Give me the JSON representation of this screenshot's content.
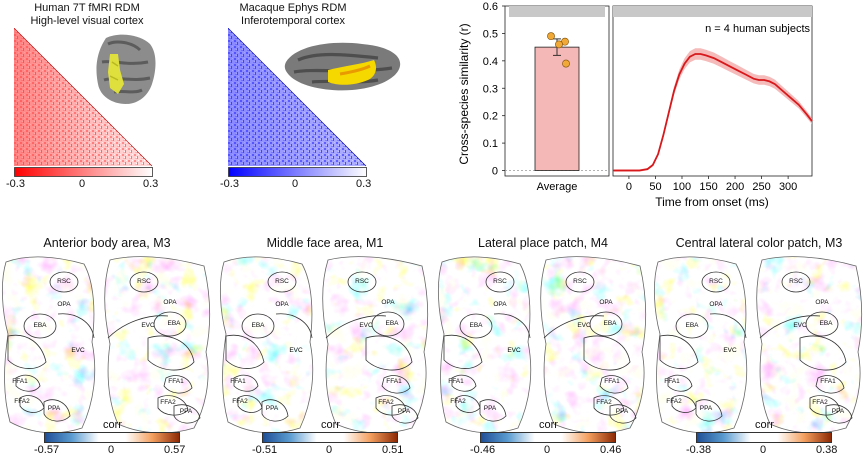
{
  "rdm_human": {
    "title_line1": "Human 7T fMRI RDM",
    "title_line2": "High-level visual cortex",
    "cbar_min": "-0.3",
    "cbar_mid": "0",
    "cbar_max": "0.3",
    "color": "#e60000"
  },
  "rdm_macaque": {
    "title_line1": "Macaque Ephys RDM",
    "title_line2": "Inferotemporal cortex",
    "cbar_min": "-0.3",
    "cbar_mid": "0",
    "cbar_max": "0.3",
    "color": "#1a1aff"
  },
  "chart_data": [
    {
      "type": "bar",
      "categories": [
        "Average"
      ],
      "values": [
        0.45
      ],
      "error": [
        0.03
      ],
      "points": [
        0.49,
        0.47,
        0.46,
        0.39
      ],
      "ylabel": "Cross-species similarity (r)",
      "ylim": [
        -0.02,
        0.6
      ],
      "yticks": [
        "0",
        "0.1",
        "0.2",
        "0.3",
        "0.4",
        "0.5",
        "0.6"
      ],
      "bar_color": "#f4b9b6",
      "point_color": "#f0a836"
    },
    {
      "type": "line",
      "xlabel": "Time from onset (ms)",
      "xticks": [
        "0",
        "50",
        "100",
        "150",
        "200",
        "250",
        "300"
      ],
      "xlim": [
        -30,
        345
      ],
      "ylim": [
        -0.02,
        0.6
      ],
      "annotation": "n = 4 human subjects",
      "line_color": "#d7191c",
      "x": [
        -30,
        0,
        20,
        35,
        45,
        55,
        65,
        75,
        85,
        95,
        105,
        115,
        125,
        135,
        145,
        160,
        175,
        190,
        205,
        220,
        235,
        245,
        255,
        265,
        275,
        290,
        305,
        320,
        335,
        345
      ],
      "y": [
        0.0,
        0.0,
        0.0,
        0.005,
        0.02,
        0.06,
        0.13,
        0.21,
        0.29,
        0.35,
        0.39,
        0.415,
        0.425,
        0.425,
        0.42,
        0.41,
        0.395,
        0.38,
        0.365,
        0.35,
        0.335,
        0.33,
        0.33,
        0.325,
        0.315,
        0.29,
        0.265,
        0.24,
        0.205,
        0.18
      ]
    }
  ],
  "maps": [
    {
      "title": "Anterior body area, M3",
      "cbar_min": "-0.57",
      "cbar_mid": "0",
      "cbar_max": "0.57",
      "corr_label": "corr",
      "labels_left": [
        "RSC",
        "OPA",
        "EBA",
        "FFA1",
        "FFA2",
        "PPA"
      ],
      "labels_right": [
        "RSC",
        "OPA",
        "EVC",
        "EBA",
        "FFA1",
        "FFA2",
        "PPA"
      ]
    },
    {
      "title": "Middle face area, M1",
      "cbar_min": "-0.51",
      "cbar_mid": "0",
      "cbar_max": "0.51",
      "corr_label": "corr",
      "labels_left": [
        "RSC",
        "OPA",
        "EBA",
        "FFA1",
        "FFA2",
        "PPA"
      ],
      "labels_right": [
        "RSC",
        "OPA",
        "EVC",
        "EBA",
        "FFA1",
        "FFA2",
        "PPA"
      ]
    },
    {
      "title": "Lateral place patch, M4",
      "cbar_min": "-0.46",
      "cbar_mid": "0",
      "cbar_max": "0.46",
      "corr_label": "corr",
      "labels_left": [
        "RSC",
        "OPA",
        "EBA",
        "FFA1",
        "FFA2",
        "PPA"
      ],
      "labels_right": [
        "RSC",
        "OPA",
        "EVC",
        "EBA",
        "FFA1",
        "FFA2",
        "PPA"
      ]
    },
    {
      "title": "Central lateral color patch, M3",
      "cbar_min": "-0.38",
      "cbar_mid": "0",
      "cbar_max": "0.38",
      "corr_label": "corr",
      "labels_left": [
        "RSC",
        "OPA",
        "EBA",
        "FFA1",
        "FFA2",
        "PPA"
      ],
      "labels_right": [
        "RSC",
        "OPA",
        "EVC",
        "EBA",
        "FFA1",
        "FFA2",
        "PPA"
      ]
    }
  ],
  "evc_label": "EVC"
}
